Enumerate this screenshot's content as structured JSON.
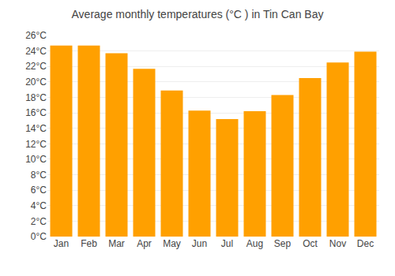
{
  "chart_data": {
    "type": "bar",
    "title": "Average monthly temperatures (°C ) in Tin Can Bay",
    "categories": [
      "Jan",
      "Feb",
      "Mar",
      "Apr",
      "May",
      "Jun",
      "Jul",
      "Aug",
      "Sep",
      "Oct",
      "Nov",
      "Dec"
    ],
    "values": [
      24.7,
      24.7,
      23.7,
      21.7,
      18.9,
      16.3,
      15.2,
      16.2,
      18.3,
      20.5,
      22.5,
      23.9
    ],
    "color": "#FFA000",
    "ylim": [
      0,
      26
    ],
    "yticks": [
      {
        "value": 0,
        "label": "0°C"
      },
      {
        "value": 2,
        "label": "2°C"
      },
      {
        "value": 4,
        "label": "4°C"
      },
      {
        "value": 6,
        "label": "6°C"
      },
      {
        "value": 8,
        "label": "8°C"
      },
      {
        "value": 10,
        "label": "10°C"
      },
      {
        "value": 12,
        "label": "12°C"
      },
      {
        "value": 14,
        "label": "14°C"
      },
      {
        "value": 16,
        "label": "16°C"
      },
      {
        "value": 18,
        "label": "18°C"
      },
      {
        "value": 20,
        "label": "20°C"
      },
      {
        "value": 22,
        "label": "22°C"
      },
      {
        "value": 24,
        "label": "24°C"
      },
      {
        "value": 26,
        "label": "26°C"
      }
    ],
    "grid": true
  }
}
